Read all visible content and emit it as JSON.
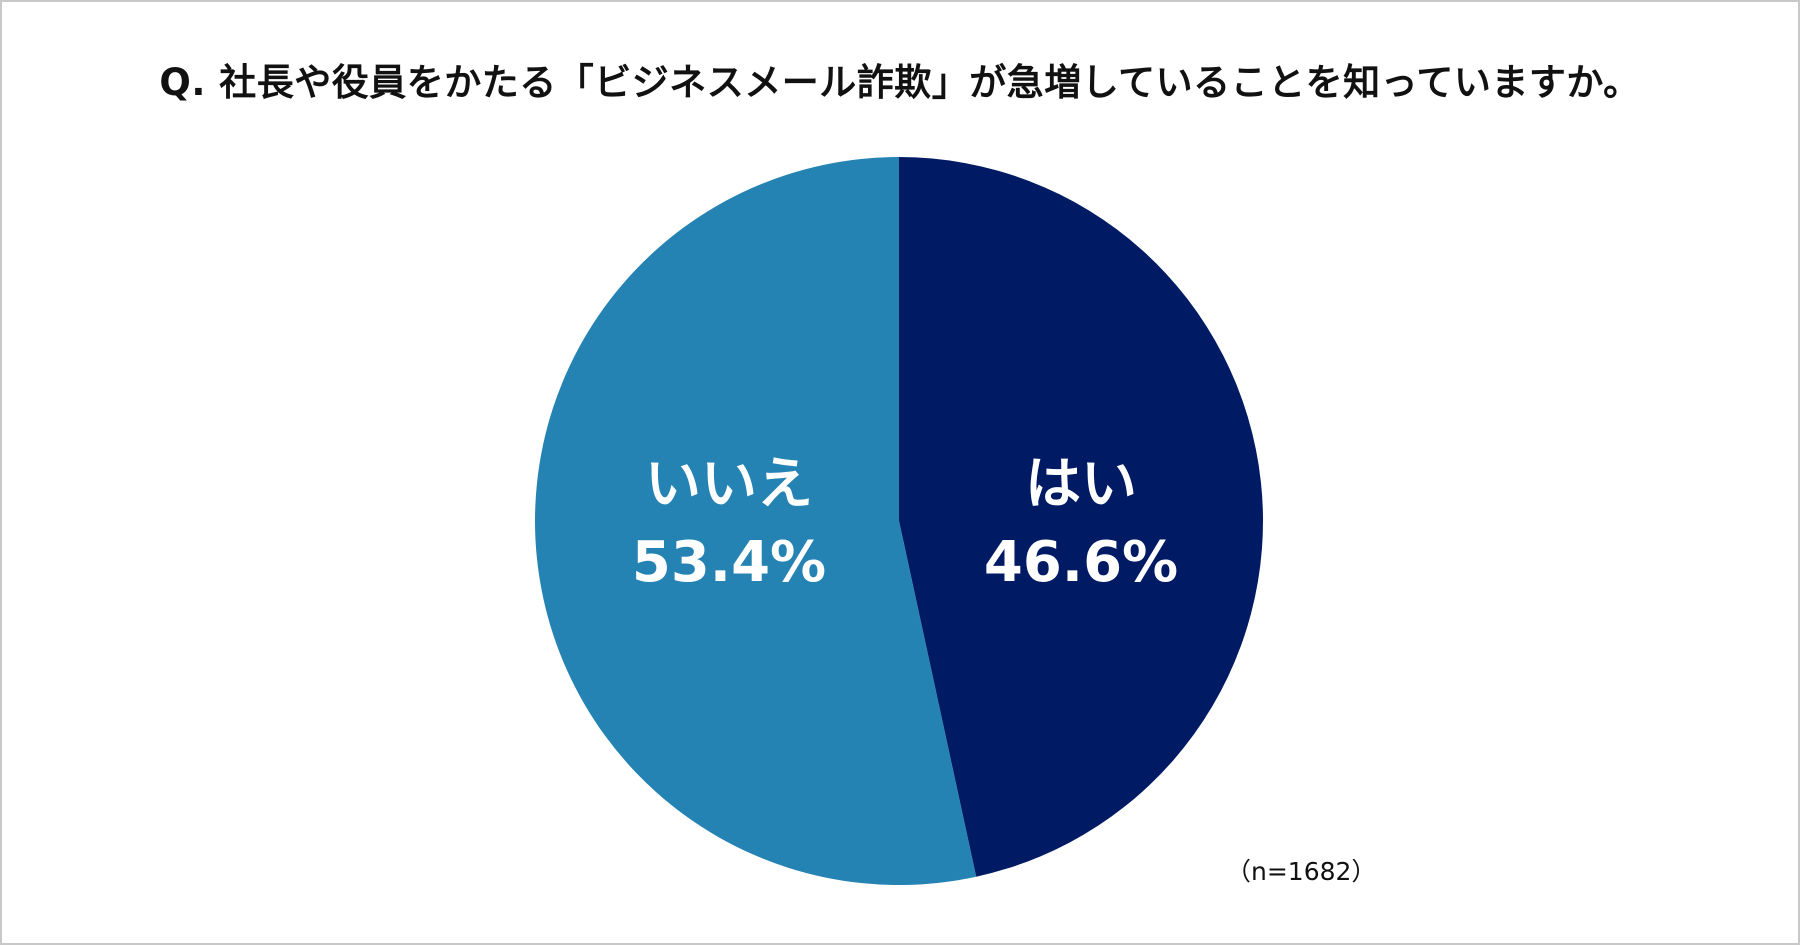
{
  "chart_data": {
    "type": "pie",
    "title": "Q. 社長や役員をかたる「ビジネスメール詐欺」が急増していることを知っていますか。",
    "slices": [
      {
        "label": "はい",
        "value": 46.6,
        "value_label": "46.6%",
        "color": "#001a64"
      },
      {
        "label": "いいえ",
        "value": 53.4,
        "value_label": "53.4%",
        "color": "#2483b3"
      }
    ],
    "start": "top, clockwise",
    "note": "（n=1682）"
  }
}
